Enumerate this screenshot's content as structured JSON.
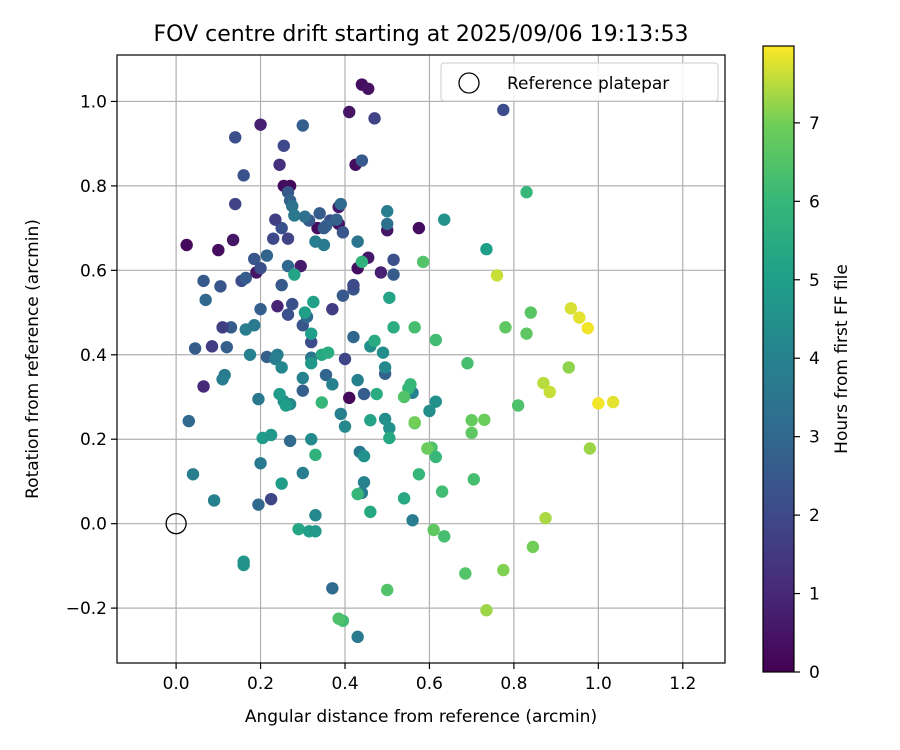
{
  "chart_data": {
    "type": "scatter",
    "title": "FOV centre drift starting at 2025/09/06 19:13:53",
    "xlabel": "Angular distance from reference (arcmin)",
    "ylabel": "Rotation from reference (arcmin)",
    "xlim": [
      -0.14,
      1.3
    ],
    "ylim": [
      -0.33,
      1.11
    ],
    "xticks": [
      0.0,
      0.2,
      0.4,
      0.6,
      0.8,
      1.0,
      1.2
    ],
    "xtick_labels": [
      "0.0",
      "0.2",
      "0.4",
      "0.6",
      "0.8",
      "1.0",
      "1.2"
    ],
    "yticks": [
      -0.2,
      0.0,
      0.2,
      0.4,
      0.6,
      0.8,
      1.0
    ],
    "ytick_labels": [
      "−0.2",
      "0.0",
      "0.2",
      "0.4",
      "0.6",
      "0.8",
      "1.0"
    ],
    "grid": true,
    "legend": {
      "position": "top-right",
      "entries": [
        "Reference platepar"
      ]
    },
    "reference_point": {
      "x": 0.0,
      "y": 0.0,
      "label": "Reference platepar"
    },
    "colorbar": {
      "label": "Hours from first FF file",
      "range": [
        0,
        7.98
      ],
      "ticks": [
        0,
        1,
        2,
        3,
        4,
        5,
        6,
        7
      ],
      "tick_labels": [
        "0",
        "1",
        "2",
        "3",
        "4",
        "5",
        "6",
        "7"
      ],
      "colormap": "viridis"
    },
    "series": [
      {
        "name": "FOV centre drift",
        "points": [
          [
            0.44,
            1.04,
            0.3
          ],
          [
            0.455,
            1.03,
            0.4
          ],
          [
            0.41,
            0.975,
            0.5
          ],
          [
            0.2,
            0.945,
            0.8
          ],
          [
            0.425,
            0.85,
            0.3
          ],
          [
            0.27,
            0.8,
            0.2
          ],
          [
            0.255,
            0.8,
            0.3
          ],
          [
            0.025,
            0.66,
            0.2
          ],
          [
            0.1,
            0.648,
            0.3
          ],
          [
            0.135,
            0.672,
            0.5
          ],
          [
            0.19,
            0.595,
            0.5
          ],
          [
            0.295,
            0.61,
            0.7
          ],
          [
            0.385,
            0.75,
            0.6
          ],
          [
            0.385,
            0.71,
            0.4
          ],
          [
            0.335,
            0.7,
            0.3
          ],
          [
            0.5,
            0.695,
            0.5
          ],
          [
            0.455,
            0.63,
            0.6
          ],
          [
            0.485,
            0.595,
            0.8
          ],
          [
            0.43,
            0.605,
            0.3
          ],
          [
            0.575,
            0.7,
            0.3
          ],
          [
            0.41,
            0.298,
            0.2
          ],
          [
            0.24,
            0.515,
            0.9
          ],
          [
            0.065,
            0.325,
            1.0
          ],
          [
            0.775,
            0.98,
            2.1
          ],
          [
            0.44,
            0.86,
            2.5
          ],
          [
            0.47,
            0.96,
            1.8
          ],
          [
            0.14,
            0.915,
            2.2
          ],
          [
            0.3,
            0.943,
            2.7
          ],
          [
            0.255,
            0.895,
            2.0
          ],
          [
            0.245,
            0.85,
            1.2
          ],
          [
            0.16,
            0.825,
            2.3
          ],
          [
            0.14,
            0.757,
            1.8
          ],
          [
            0.265,
            0.785,
            2.5
          ],
          [
            0.27,
            0.765,
            2.8
          ],
          [
            0.25,
            0.7,
            2.3
          ],
          [
            0.23,
            0.675,
            2.0
          ],
          [
            0.235,
            0.72,
            1.7
          ],
          [
            0.315,
            0.718,
            2.5
          ],
          [
            0.34,
            0.735,
            2.6
          ],
          [
            0.365,
            0.718,
            2.2
          ],
          [
            0.38,
            0.72,
            2.8
          ],
          [
            0.395,
            0.69,
            2.4
          ],
          [
            0.355,
            0.705,
            2.9
          ],
          [
            0.265,
            0.675,
            1.8
          ],
          [
            0.2,
            0.605,
            2.2
          ],
          [
            0.215,
            0.635,
            2.9
          ],
          [
            0.185,
            0.627,
            2.4
          ],
          [
            0.265,
            0.61,
            3.0
          ],
          [
            0.25,
            0.565,
            2.5
          ],
          [
            0.155,
            0.575,
            2.1
          ],
          [
            0.165,
            0.582,
            2.6
          ],
          [
            0.065,
            0.575,
            2.5
          ],
          [
            0.105,
            0.562,
            2.4
          ],
          [
            0.07,
            0.53,
            3.0
          ],
          [
            0.2,
            0.508,
            2.7
          ],
          [
            0.275,
            0.52,
            2.2
          ],
          [
            0.265,
            0.495,
            2.3
          ],
          [
            0.37,
            0.508,
            1.6
          ],
          [
            0.395,
            0.54,
            2.5
          ],
          [
            0.42,
            0.555,
            2.4
          ],
          [
            0.42,
            0.565,
            2.0
          ],
          [
            0.515,
            0.625,
            2.2
          ],
          [
            0.515,
            0.59,
            2.6
          ],
          [
            0.3,
            0.47,
            2.4
          ],
          [
            0.31,
            0.49,
            3.1
          ],
          [
            0.13,
            0.465,
            2.6
          ],
          [
            0.11,
            0.465,
            1.7
          ],
          [
            0.085,
            0.42,
            1.6
          ],
          [
            0.045,
            0.415,
            2.6
          ],
          [
            0.12,
            0.418,
            2.7
          ],
          [
            0.215,
            0.395,
            2.7
          ],
          [
            0.32,
            0.43,
            2.1
          ],
          [
            0.32,
            0.393,
            3.5
          ],
          [
            0.355,
            0.352,
            2.9
          ],
          [
            0.4,
            0.39,
            1.9
          ],
          [
            0.42,
            0.442,
            3.0
          ],
          [
            0.445,
            0.307,
            2.6
          ],
          [
            0.495,
            0.355,
            2.8
          ],
          [
            0.03,
            0.243,
            3.0
          ],
          [
            0.3,
            0.315,
            2.7
          ],
          [
            0.27,
            0.196,
            3.1
          ],
          [
            0.225,
            0.058,
            1.9
          ],
          [
            0.195,
            0.045,
            3.0
          ],
          [
            0.37,
            -0.153,
            3.1
          ],
          [
            0.43,
            -0.268,
            3.7
          ],
          [
            0.33,
            0.668,
            3.8
          ],
          [
            0.43,
            0.668,
            3.5
          ],
          [
            0.5,
            0.74,
            3.8
          ],
          [
            0.35,
            0.66,
            3.7
          ],
          [
            0.35,
            0.7,
            2.6
          ],
          [
            0.275,
            0.752,
            3.4
          ],
          [
            0.28,
            0.73,
            3.6
          ],
          [
            0.305,
            0.727,
            3.3
          ],
          [
            0.39,
            0.757,
            3.1
          ],
          [
            0.165,
            0.46,
            3.8
          ],
          [
            0.185,
            0.47,
            3.7
          ],
          [
            0.175,
            0.4,
            3.9
          ],
          [
            0.195,
            0.295,
            3.6
          ],
          [
            0.2,
            0.143,
            3.7
          ],
          [
            0.09,
            0.055,
            3.9
          ],
          [
            0.04,
            0.117,
            3.8
          ],
          [
            0.115,
            0.352,
            3.7
          ],
          [
            0.11,
            0.342,
            3.8
          ],
          [
            0.235,
            0.39,
            3.8
          ],
          [
            0.24,
            0.4,
            3.8
          ],
          [
            0.25,
            0.37,
            4.2
          ],
          [
            0.27,
            0.283,
            4.2
          ],
          [
            0.255,
            0.29,
            4.4
          ],
          [
            0.3,
            0.345,
            4.0
          ],
          [
            0.3,
            0.12,
            3.8
          ],
          [
            0.32,
            0.2,
            4.3
          ],
          [
            0.37,
            0.33,
            3.9
          ],
          [
            0.39,
            0.26,
            3.9
          ],
          [
            0.4,
            0.23,
            4.2
          ],
          [
            0.43,
            0.34,
            3.9
          ],
          [
            0.435,
            0.17,
            3.6
          ],
          [
            0.445,
            0.098,
            4.0
          ],
          [
            0.44,
            0.073,
            3.8
          ],
          [
            0.445,
            0.16,
            4.5
          ],
          [
            0.46,
            0.42,
            4.4
          ],
          [
            0.49,
            0.405,
            4.4
          ],
          [
            0.495,
            0.37,
            4.2
          ],
          [
            0.495,
            0.248,
            4.4
          ],
          [
            0.505,
            0.226,
            4.5
          ],
          [
            0.56,
            0.008,
            3.8
          ],
          [
            0.56,
            0.31,
            4.0
          ],
          [
            0.6,
            0.267,
            4.4
          ],
          [
            0.615,
            0.289,
            4.5
          ],
          [
            0.635,
            0.72,
            4.6
          ],
          [
            0.33,
            0.02,
            4.2
          ],
          [
            0.28,
            0.59,
            5.2
          ],
          [
            0.305,
            0.5,
            5.0
          ],
          [
            0.325,
            0.525,
            5.1
          ],
          [
            0.32,
            0.45,
            5.0
          ],
          [
            0.32,
            0.38,
            4.8
          ],
          [
            0.345,
            0.4,
            5.4
          ],
          [
            0.36,
            0.405,
            5.5
          ],
          [
            0.245,
            0.307,
            4.9
          ],
          [
            0.26,
            0.28,
            5.0
          ],
          [
            0.205,
            0.203,
            4.9
          ],
          [
            0.225,
            0.21,
            4.8
          ],
          [
            0.25,
            0.095,
            4.9
          ],
          [
            0.29,
            -0.013,
            5.3
          ],
          [
            0.315,
            -0.018,
            5.0
          ],
          [
            0.33,
            -0.018,
            4.8
          ],
          [
            0.16,
            -0.09,
            4.7
          ],
          [
            0.16,
            -0.098,
            4.6
          ],
          [
            0.33,
            0.163,
            5.8
          ],
          [
            0.345,
            0.287,
            6.0
          ],
          [
            0.43,
            0.07,
            6.0
          ],
          [
            0.46,
            0.245,
            5.2
          ],
          [
            0.46,
            0.028,
            5.4
          ],
          [
            0.47,
            0.433,
            5.5
          ],
          [
            0.475,
            0.307,
            5.5
          ],
          [
            0.505,
            0.535,
            5.2
          ],
          [
            0.505,
            0.203,
            5.4
          ],
          [
            0.515,
            0.465,
            5.6
          ],
          [
            0.54,
            0.06,
            5.4
          ],
          [
            0.55,
            0.32,
            6.0
          ],
          [
            0.555,
            0.33,
            6.0
          ],
          [
            0.565,
            0.465,
            6.3
          ],
          [
            0.565,
            0.238,
            6.3
          ],
          [
            0.575,
            0.117,
            6.0
          ],
          [
            0.585,
            0.62,
            6.5
          ],
          [
            0.605,
            0.18,
            6.4
          ],
          [
            0.615,
            0.158,
            6.0
          ],
          [
            0.615,
            0.435,
            6.2
          ],
          [
            0.63,
            0.076,
            6.2
          ],
          [
            0.635,
            -0.03,
            6.3
          ],
          [
            0.395,
            -0.23,
            6.2
          ],
          [
            0.44,
            0.62,
            5.8
          ],
          [
            0.385,
            -0.225,
            6.4
          ],
          [
            0.5,
            -0.157,
            6.5
          ],
          [
            0.83,
            0.785,
            6.0
          ],
          [
            0.54,
            0.3,
            6.5
          ],
          [
            0.61,
            -0.015,
            6.7
          ],
          [
            0.69,
            0.38,
            6.3
          ],
          [
            0.685,
            -0.118,
            6.5
          ],
          [
            0.7,
            0.215,
            6.7
          ],
          [
            0.705,
            0.105,
            6.3
          ],
          [
            0.7,
            0.245,
            6.8
          ],
          [
            0.73,
            0.246,
            6.9
          ],
          [
            0.735,
            0.65,
            5.0
          ],
          [
            0.595,
            0.178,
            6.9
          ],
          [
            0.565,
            0.24,
            7.0
          ],
          [
            0.78,
            0.465,
            6.7
          ],
          [
            0.83,
            0.45,
            6.7
          ],
          [
            0.84,
            0.5,
            6.6
          ],
          [
            0.81,
            0.28,
            6.4
          ],
          [
            0.775,
            -0.11,
            7.1
          ],
          [
            0.845,
            -0.055,
            7.0
          ],
          [
            0.735,
            -0.205,
            7.3
          ],
          [
            0.5,
            0.71,
            3.3
          ],
          [
            0.76,
            0.588,
            7.6
          ],
          [
            0.87,
            0.333,
            7.5
          ],
          [
            0.885,
            0.312,
            7.6
          ],
          [
            0.875,
            0.013,
            7.4
          ],
          [
            0.93,
            0.37,
            7.2
          ],
          [
            0.935,
            0.51,
            7.7
          ],
          [
            0.955,
            0.488,
            7.8
          ],
          [
            0.975,
            0.463,
            7.9
          ],
          [
            0.98,
            0.178,
            7.3
          ],
          [
            1.0,
            0.285,
            7.9
          ],
          [
            1.035,
            0.288,
            7.8
          ]
        ]
      }
    ]
  }
}
